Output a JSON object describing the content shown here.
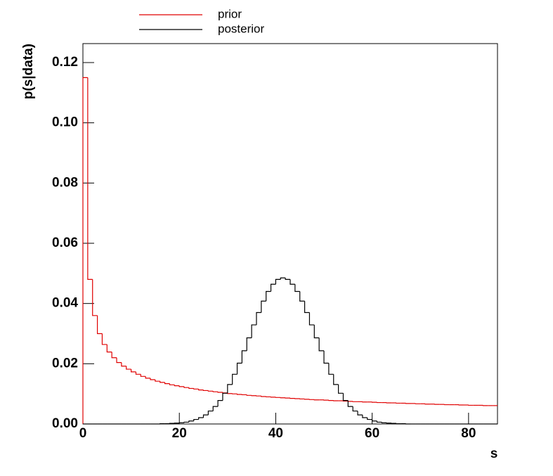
{
  "chart_data": {
    "type": "histogram",
    "xlabel": "s",
    "ylabel": "p(s|data)",
    "xlim": [
      0,
      86
    ],
    "ylim": [
      0,
      0.1263
    ],
    "xticks": [
      0,
      20,
      40,
      60,
      80
    ],
    "yticks": [
      {
        "value": 0,
        "label": "0.00"
      },
      {
        "value": 0.02,
        "label": "0.02"
      },
      {
        "value": 0.04,
        "label": "0.04"
      },
      {
        "value": 0.06,
        "label": "0.06"
      },
      {
        "value": 0.08,
        "label": "0.08"
      },
      {
        "value": 0.1,
        "label": "0.10"
      },
      {
        "value": 0.12,
        "label": "0.12"
      }
    ],
    "bins": [
      0,
      1,
      2,
      3,
      4,
      5,
      6,
      7,
      8,
      9,
      10,
      11,
      12,
      13,
      14,
      15,
      16,
      17,
      18,
      19,
      20,
      21,
      22,
      23,
      24,
      25,
      26,
      27,
      28,
      29,
      30,
      31,
      32,
      33,
      34,
      35,
      36,
      37,
      38,
      39,
      40,
      41,
      42,
      43,
      44,
      45,
      46,
      47,
      48,
      49,
      50,
      51,
      52,
      53,
      54,
      55,
      56,
      57,
      58,
      59,
      60,
      61,
      62,
      63,
      64,
      65,
      66,
      67,
      68,
      69,
      70,
      71,
      72,
      73,
      74,
      75,
      76,
      77,
      78,
      79,
      80,
      81,
      82,
      83,
      84,
      85,
      86
    ],
    "series": [
      {
        "name": "prior",
        "color": "#e00000",
        "values": [
          0.115,
          0.048,
          0.036,
          0.03,
          0.0264,
          0.0239,
          0.022,
          0.0204,
          0.0192,
          0.0182,
          0.0173,
          0.0165,
          0.0158,
          0.0152,
          0.0147,
          0.0142,
          0.0138,
          0.0134,
          0.013,
          0.0127,
          0.0124,
          0.0121,
          0.0118,
          0.0116,
          0.0113,
          0.0111,
          0.0109,
          0.0107,
          0.0105,
          0.0103,
          0.0101,
          0.01,
          0.0098,
          0.0097,
          0.0095,
          0.0094,
          0.0093,
          0.0091,
          0.009,
          0.0089,
          0.0088,
          0.0087,
          0.0086,
          0.0085,
          0.0084,
          0.0083,
          0.0082,
          0.0081,
          0.008,
          0.008,
          0.0079,
          0.0078,
          0.0077,
          0.0077,
          0.0076,
          0.0075,
          0.0074,
          0.0074,
          0.0073,
          0.0073,
          0.0072,
          0.0071,
          0.0071,
          0.007,
          0.007,
          0.0069,
          0.0069,
          0.0068,
          0.0068,
          0.0067,
          0.0067,
          0.0066,
          0.0066,
          0.0065,
          0.0065,
          0.0064,
          0.0064,
          0.0064,
          0.0063,
          0.0063,
          0.0062,
          0.0062,
          0.0062,
          0.0061,
          0.0061,
          0.0061
        ]
      },
      {
        "name": "posterior",
        "color": "#000000",
        "values": [
          0,
          0,
          0,
          0,
          0,
          0,
          0,
          0,
          0,
          0,
          0,
          0,
          0,
          0,
          0,
          0,
          0.0001,
          0.0001,
          0.0002,
          0.0003,
          0.0004,
          0.0006,
          0.001,
          0.0015,
          0.0021,
          0.003,
          0.0043,
          0.0058,
          0.0078,
          0.0102,
          0.0131,
          0.0165,
          0.0202,
          0.0243,
          0.0286,
          0.0329,
          0.037,
          0.0408,
          0.044,
          0.0464,
          0.048,
          0.0485,
          0.048,
          0.0464,
          0.044,
          0.0408,
          0.037,
          0.0329,
          0.0286,
          0.0243,
          0.0202,
          0.0165,
          0.0131,
          0.0102,
          0.0078,
          0.0058,
          0.0043,
          0.003,
          0.0021,
          0.0015,
          0.001,
          0.0006,
          0.0004,
          0.0003,
          0.0002,
          0.0001,
          0.0001,
          0,
          0,
          0,
          0,
          0,
          0,
          0,
          0,
          0,
          0,
          0,
          0,
          0,
          0,
          0,
          0,
          0,
          0,
          0
        ]
      }
    ]
  }
}
